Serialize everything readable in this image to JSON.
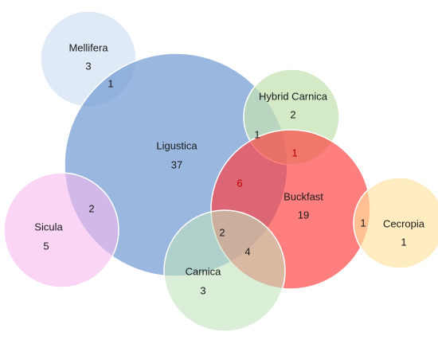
{
  "diagram": {
    "type": "venn",
    "sets": [
      {
        "id": "mellifera",
        "name": "Mellifera",
        "count": "3",
        "color": "#d9e6f4",
        "opacity": 0.85
      },
      {
        "id": "ligustica",
        "name": "Ligustica",
        "count": "37",
        "color": "#6f98d3",
        "opacity": 0.7
      },
      {
        "id": "hybrid-carnica",
        "name": "Hybrid Carnica",
        "count": "2",
        "color": "#c3e2b2",
        "opacity": 0.72
      },
      {
        "id": "buckfast",
        "name": "Buckfast",
        "count": "19",
        "color": "#ff3b3b",
        "opacity": 0.65
      },
      {
        "id": "cecropia",
        "name": "Cecropia",
        "count": "1",
        "color": "#ffe4a0",
        "opacity": 0.65
      },
      {
        "id": "sicula",
        "name": "Sicula",
        "count": "5",
        "color": "#f7b9ee",
        "opacity": 0.6
      },
      {
        "id": "carnica",
        "name": "Carnica",
        "count": "3",
        "color": "#bfe2bb",
        "opacity": 0.58
      }
    ],
    "overlaps": [
      {
        "id": "mellifera-ligustica",
        "value": "1"
      },
      {
        "id": "ligustica-hybrid-carnica",
        "value": "1"
      },
      {
        "id": "hybrid-carnica-buckfast",
        "value": "1"
      },
      {
        "id": "ligustica-buckfast",
        "value": "6"
      },
      {
        "id": "ligustica-sicula",
        "value": "2"
      },
      {
        "id": "ligustica-buckfast-carnica",
        "value": "2"
      },
      {
        "id": "buckfast-carnica",
        "value": "4"
      },
      {
        "id": "buckfast-cecropia",
        "value": "1"
      }
    ],
    "outline_color": "#ffffff"
  }
}
